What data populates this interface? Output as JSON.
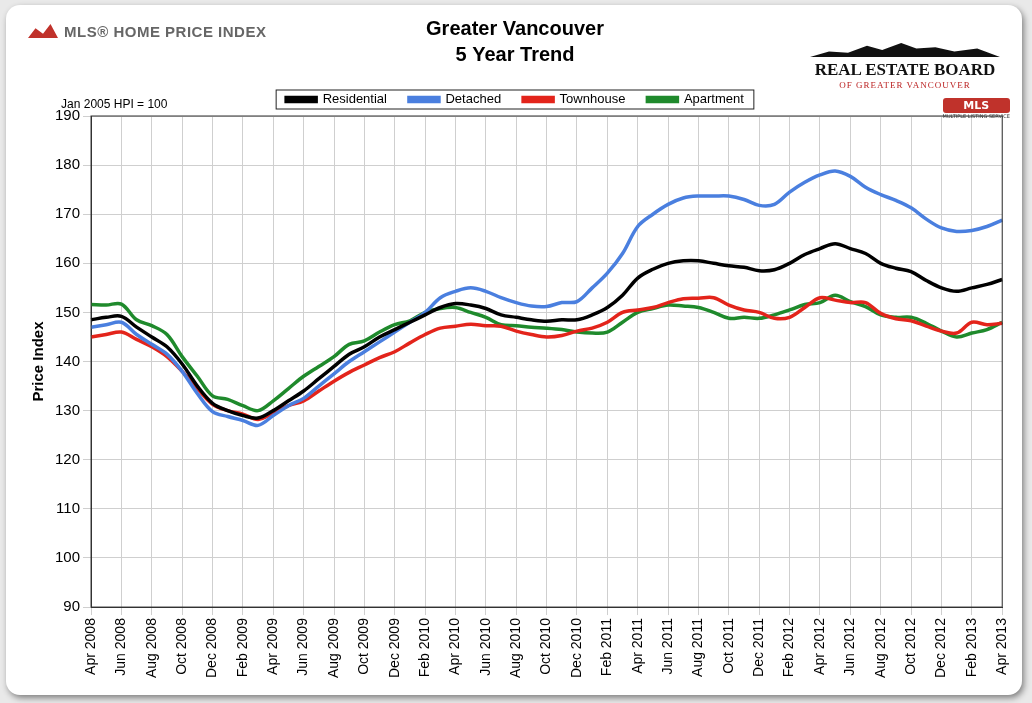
{
  "chart_data": {
    "type": "line",
    "title": "Greater Vancouver",
    "subtitle": "5 Year Trend",
    "annotation": "Jan 2005 HPI = 100",
    "y_label": "Price Index",
    "categories": [
      "Apr 2008",
      null,
      "Jun 2008",
      null,
      "Aug 2008",
      null,
      "Oct 2008",
      null,
      "Dec 2008",
      null,
      "Feb 2009",
      null,
      "Apr 2009",
      null,
      "Jun 2009",
      null,
      "Aug 2009",
      null,
      "Oct 2009",
      null,
      "Dec 2009",
      null,
      "Feb 2010",
      null,
      "Apr 2010",
      null,
      "Jun 2010",
      null,
      "Aug 2010",
      null,
      "Oct 2010",
      null,
      "Dec 2010",
      null,
      "Feb 2011",
      null,
      "Apr 2011",
      null,
      "Jun 2011",
      null,
      "Aug 2011",
      null,
      "Oct 2011",
      null,
      "Dec 2011",
      null,
      "Feb 2012",
      null,
      "Apr 2012",
      null,
      "Jun 2012",
      null,
      "Aug 2012",
      null,
      "Oct 2012",
      null,
      "Dec 2012",
      null,
      "Feb 2013",
      null,
      "Apr 2013"
    ],
    "series": [
      {
        "name": "Residential",
        "color": "#000000",
        "values": [
          148.5,
          149,
          149.2,
          147,
          145,
          143,
          139.5,
          135,
          131.5,
          130,
          129,
          128.5,
          130,
          132,
          134,
          136.5,
          139,
          141.5,
          143,
          145,
          146.5,
          148,
          149.5,
          151,
          151.8,
          151.5,
          150.8,
          149.5,
          149,
          148.5,
          148.2,
          148.5,
          148.5,
          149.5,
          151,
          153.5,
          157,
          158.8,
          160,
          160.5,
          160.5,
          160,
          159.5,
          159.2,
          158.5,
          158.7,
          160,
          161.8,
          163,
          164,
          163,
          162,
          160,
          159,
          158.3,
          156.5,
          155,
          154.3,
          155,
          155.7,
          156.7
        ]
      },
      {
        "name": "Detached",
        "color": "#4a7fdf",
        "values": [
          147,
          147.5,
          148,
          145.5,
          143.5,
          141.5,
          138,
          133.5,
          129.8,
          128.8,
          128,
          127,
          129,
          131,
          132.5,
          135,
          137.5,
          140,
          142,
          144,
          146,
          148,
          150,
          153,
          154.3,
          155,
          154.3,
          153,
          152,
          151.3,
          151.2,
          152,
          152.2,
          155,
          158,
          162,
          167.5,
          170,
          172,
          173.3,
          173.7,
          173.7,
          173.7,
          173,
          171.8,
          172,
          174.5,
          176.5,
          178,
          178.8,
          177.7,
          175.5,
          174,
          172.8,
          171.3,
          169,
          167.2,
          166.5,
          166.7,
          167.5,
          168.8
        ]
      },
      {
        "name": "Townhouse",
        "color": "#e3241b",
        "values": [
          145,
          145.5,
          146,
          144.5,
          143,
          141,
          138,
          134.5,
          131.3,
          130,
          129.3,
          128.2,
          129.5,
          131,
          132,
          134,
          136,
          137.8,
          139.3,
          140.8,
          142,
          143.8,
          145.5,
          146.8,
          147.2,
          147.6,
          147.3,
          147.2,
          146.2,
          145.5,
          145,
          145.3,
          146.2,
          146.8,
          148,
          150,
          150.5,
          151,
          152,
          152.8,
          152.9,
          153,
          151.5,
          150.5,
          150,
          148.8,
          149,
          151,
          153,
          152.5,
          152,
          152,
          149.8,
          148.7,
          148.3,
          147.2,
          146.2,
          145.8,
          148,
          147.5,
          147.8
        ]
      },
      {
        "name": "Apartment",
        "color": "#1f8a2c",
        "values": [
          151.6,
          151.5,
          151.7,
          148.5,
          147.3,
          145.5,
          141,
          137,
          133,
          132.3,
          131,
          130,
          132,
          134.5,
          137,
          139,
          141,
          143.5,
          144.2,
          146,
          147.5,
          148.3,
          150,
          150.8,
          151,
          150,
          149,
          147.5,
          147.3,
          147,
          146.8,
          146.5,
          146,
          145.8,
          146,
          148,
          150,
          150.8,
          151.5,
          151.3,
          151,
          150,
          148.8,
          149,
          148.8,
          149.5,
          150.5,
          151.6,
          152,
          153.5,
          152.2,
          151.2,
          149.5,
          149,
          149,
          147.8,
          146.2,
          145,
          145.8,
          146.5,
          148
        ]
      }
    ],
    "ylim": [
      90,
      190
    ],
    "yticks": [
      90,
      100,
      110,
      120,
      130,
      140,
      150,
      160,
      170,
      180,
      190
    ],
    "grid": true,
    "legend": "top"
  },
  "header": {
    "left_logo": "MLS® HOME PRICE INDEX",
    "right_logo": "REAL ESTATE BOARD",
    "right_logo_sub": "OF GREATER VANCOUVER",
    "badge": "MLS",
    "badge_sub": "MULTIPLE LISTING SERVICE"
  }
}
